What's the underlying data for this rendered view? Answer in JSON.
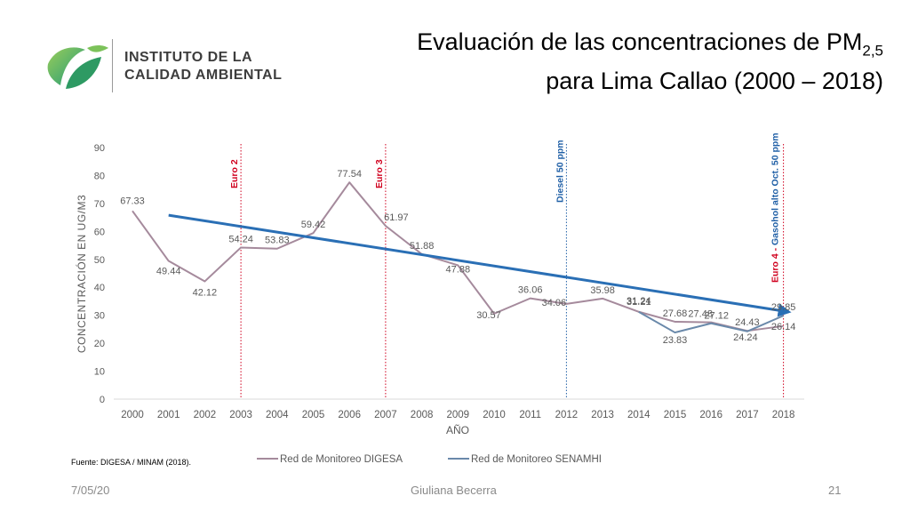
{
  "header": {
    "logo_line1": "INSTITUTO DE LA",
    "logo_line2": "CALIDAD AMBIENTAL",
    "title_line1": "Evaluación de las concentraciones de PM",
    "title_sub": "2,5",
    "title_line2": "para Lima Callao (2000 – 2018)"
  },
  "colors": {
    "digesa": "#a58a9c",
    "senamhi": "#6a89aa",
    "trend": "#2a6fb5",
    "event_red": "#d0001e",
    "event_blue": "#1f5fa6"
  },
  "chart_data": {
    "type": "line",
    "xlabel": "AÑO",
    "ylabel": "CONCENTRACIÓN EN UG/M3",
    "ylim": [
      0,
      90
    ],
    "yticks": [
      0,
      10,
      20,
      30,
      40,
      50,
      60,
      70,
      80,
      90
    ],
    "x": [
      2000,
      2001,
      2002,
      2003,
      2004,
      2005,
      2006,
      2007,
      2008,
      2009,
      2010,
      2011,
      2012,
      2013,
      2014,
      2015,
      2016,
      2017,
      2018
    ],
    "series": [
      {
        "name": "Red de Monitoreo DIGESA",
        "x": [
          2000,
          2001,
          2002,
          2003,
          2004,
          2005,
          2006,
          2007,
          2008,
          2009,
          2010,
          2011,
          2012,
          2013,
          2014,
          2015,
          2016,
          2017,
          2018
        ],
        "values": [
          67.33,
          49.44,
          42.12,
          54.24,
          53.83,
          59.42,
          77.54,
          61.97,
          51.88,
          47.88,
          30.57,
          36.06,
          34.06,
          35.98,
          31.24,
          27.68,
          27.48,
          24.43,
          26.14
        ],
        "labels": [
          "67.33",
          "49.44",
          "42.12",
          "54.24",
          "53.83",
          "59.42",
          "77.54",
          "61.97",
          "51.88",
          "47.88",
          "30.57",
          "36.06",
          "34.06",
          "35.98",
          "31.24",
          "27.68",
          "27.48",
          "24.43",
          "26.14"
        ]
      },
      {
        "name": "Red de Monitoreo SENAMHI",
        "x": [
          2014,
          2015,
          2016,
          2017,
          2018
        ],
        "values": [
          31.21,
          23.83,
          27.12,
          24.24,
          29.85
        ],
        "labels": [
          "31.21",
          "23.83",
          "27.12",
          "24.24",
          "29.85"
        ]
      }
    ],
    "trend": {
      "x": [
        2001,
        2018
      ],
      "values": [
        65.8,
        31.2
      ]
    },
    "events": [
      {
        "x": 2003,
        "label": "Euro 2",
        "color": "red"
      },
      {
        "x": 2007,
        "label": "Euro 3",
        "color": "red"
      },
      {
        "x": 2012,
        "label": "Diesel 50 ppm",
        "color": "blue"
      },
      {
        "x": 2018,
        "label_red": "Euro 4 - ",
        "label_blue": "Gasohol alto Oct. 50 ppm",
        "color": "mixed"
      }
    ],
    "legend": "bottom"
  },
  "footer": {
    "source": "Fuente: DIGESA / MINAM (2018).",
    "date": "7/05/20",
    "author": "Giuliana Becerra",
    "page": "21"
  }
}
